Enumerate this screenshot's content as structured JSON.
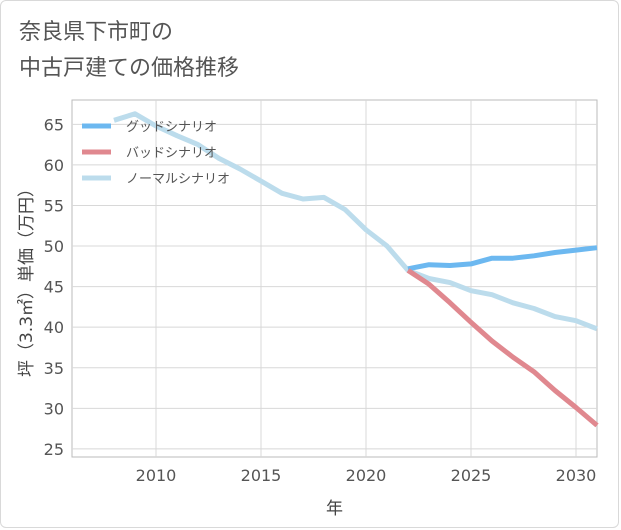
{
  "title_line1": "奈良県下市町の",
  "title_line2": "中古戸建ての価格推移",
  "chart_data": {
    "type": "line",
    "xlabel": "年",
    "ylabel": "坪（3.3㎡）単価（万円）",
    "xlim": [
      2006,
      2031
    ],
    "ylim": [
      24,
      68
    ],
    "x_ticks": [
      2010,
      2015,
      2020,
      2025,
      2030
    ],
    "y_ticks": [
      25,
      30,
      35,
      40,
      45,
      50,
      55,
      60,
      65
    ],
    "grid": true,
    "legend_position": "top-left",
    "series": [
      {
        "name": "グッドシナリオ",
        "color": "#6cb8f0",
        "x": [
          2022,
          2023,
          2024,
          2025,
          2026,
          2027,
          2028,
          2029,
          2030,
          2031
        ],
        "y": [
          47.2,
          47.7,
          47.6,
          47.8,
          48.5,
          48.5,
          48.8,
          49.2,
          49.5,
          49.8
        ]
      },
      {
        "name": "バッドシナリオ",
        "color": "#e0888f",
        "x": [
          2022,
          2023,
          2024,
          2025,
          2026,
          2027,
          2028,
          2029,
          2030,
          2031
        ],
        "y": [
          47.0,
          45.3,
          43.0,
          40.6,
          38.3,
          36.3,
          34.5,
          32.2,
          30.1,
          27.9
        ]
      },
      {
        "name": "ノーマルシナリオ",
        "color": "#bcdcec",
        "x": [
          2008,
          2009,
          2010,
          2011,
          2012,
          2013,
          2014,
          2015,
          2016,
          2017,
          2018,
          2019,
          2020,
          2021,
          2022,
          2023,
          2024,
          2025,
          2026,
          2027,
          2028,
          2029,
          2030,
          2031
        ],
        "y": [
          65.5,
          66.3,
          64.8,
          63.6,
          62.5,
          60.8,
          59.5,
          58.0,
          56.5,
          55.8,
          56.0,
          54.5,
          52.0,
          50.0,
          47.0,
          46.0,
          45.5,
          44.5,
          44.0,
          43.0,
          42.3,
          41.3,
          40.8,
          39.8
        ]
      }
    ]
  }
}
